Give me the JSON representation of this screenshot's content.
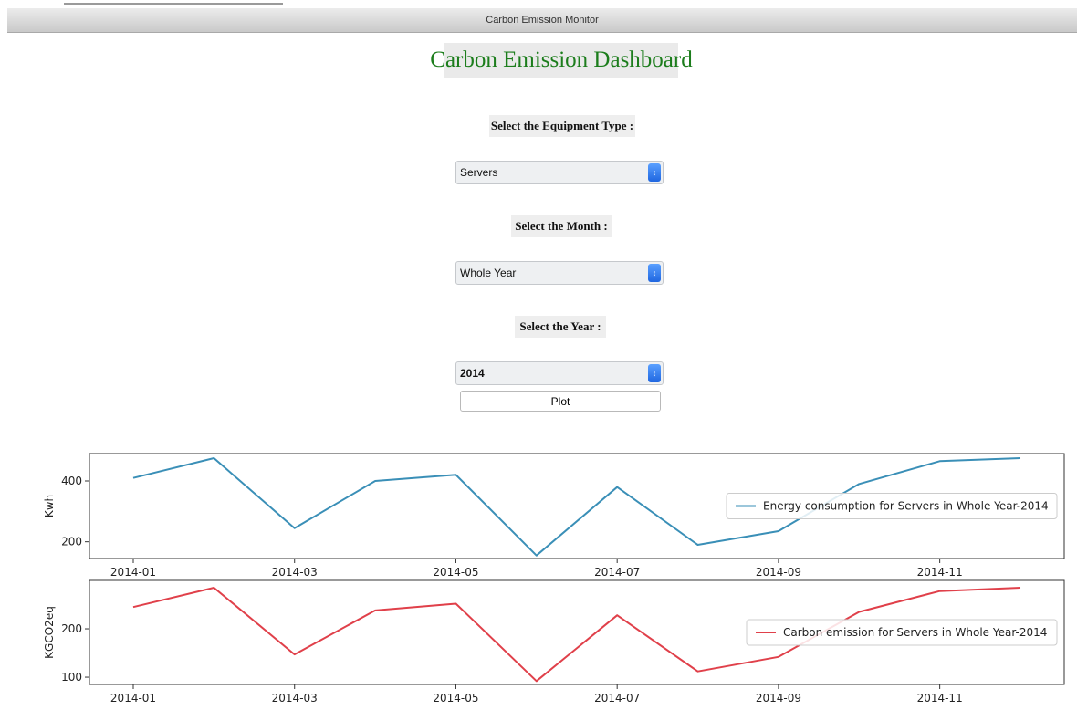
{
  "window": {
    "title": "Carbon Emission Monitor"
  },
  "dashboard": {
    "title": "Carbon Emission Dashboard",
    "equipment_label": "Select the Equipment Type :",
    "equipment_value": "Servers",
    "month_label": "Select the Month :",
    "month_value": "Whole Year",
    "year_label": "Select the Year :",
    "year_value": "2014",
    "plot_button": "Plot"
  },
  "colors": {
    "energy_line": "#3a8fb7",
    "carbon_line": "#e0404a",
    "title_green": "#1c7d1c"
  },
  "chart_data": [
    {
      "type": "line",
      "ylabel": "Kwh",
      "xticks": [
        "2014-01",
        "2014-03",
        "2014-05",
        "2014-07",
        "2014-09",
        "2014-11"
      ],
      "yticks": [
        200,
        400
      ],
      "ylim": [
        145,
        490
      ],
      "x": [
        "2014-01",
        "2014-02",
        "2014-03",
        "2014-04",
        "2014-05",
        "2014-06",
        "2014-07",
        "2014-08",
        "2014-09",
        "2014-10",
        "2014-11",
        "2014-12"
      ],
      "series": [
        {
          "name": "Energy consumption for Servers in Whole Year-2014",
          "values": [
            410,
            475,
            245,
            400,
            420,
            155,
            380,
            190,
            235,
            390,
            465,
            475
          ]
        }
      ],
      "legend": "center-right"
    },
    {
      "type": "line",
      "ylabel": "KGCO2eq",
      "xticks": [
        "2014-01",
        "2014-03",
        "2014-05",
        "2014-07",
        "2014-09",
        "2014-11"
      ],
      "yticks": [
        100,
        200
      ],
      "ylim": [
        85,
        300
      ],
      "x": [
        "2014-01",
        "2014-02",
        "2014-03",
        "2014-04",
        "2014-05",
        "2014-06",
        "2014-07",
        "2014-08",
        "2014-09",
        "2014-10",
        "2014-11",
        "2014-12"
      ],
      "series": [
        {
          "name": "Carbon emission for Servers in Whole Year-2014",
          "values": [
            245,
            285,
            147,
            238,
            252,
            92,
            228,
            112,
            142,
            235,
            278,
            285
          ]
        }
      ],
      "legend": "center-right"
    }
  ]
}
